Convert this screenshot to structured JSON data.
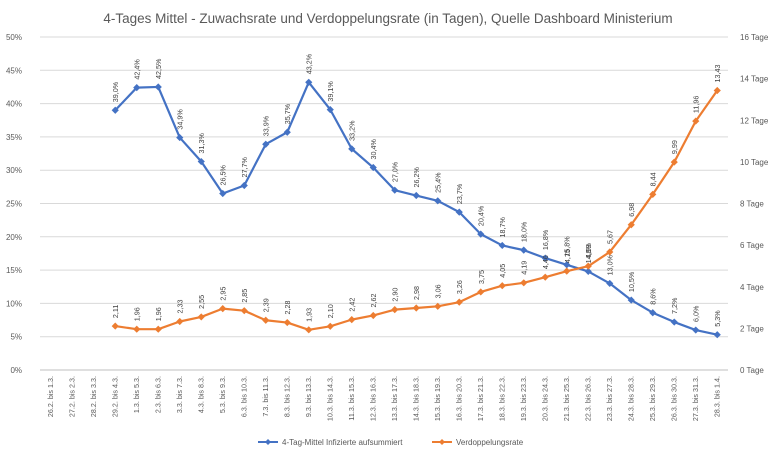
{
  "chart_data": {
    "type": "line",
    "title": "4-Tages Mittel - Zuwachsrate und Verdoppelungsrate (in Tagen), Quelle Dashboard Ministerium",
    "categories": [
      "26.2. bis 1.3.",
      "27.2. bis 2.3.",
      "28.2. bis 3.3.",
      "29.2. bis 4.3.",
      "1.3. bis 5.3.",
      "2.3. bis 6.3.",
      "3.3. bis 7.3.",
      "4.3. bis 8.3.",
      "5.3. bis 9.3.",
      "6.3. bis 10.3.",
      "7.3. bis 11.3.",
      "8.3. bis 12.3.",
      "9.3. bis 13.3.",
      "10.3. bis 14.3.",
      "11.3. bis 15.3.",
      "12.3. bis 16.3.",
      "13.3. bis 17.3.",
      "14.3. bis 18.3.",
      "15.3. bis 19.3.",
      "16.3. bis 20.3.",
      "17.3. bis 21.3.",
      "18.3. bis 22.3.",
      "19.3. bis 23.3.",
      "20.3. bis 24.3.",
      "21.3. bis 25.3.",
      "22.3. bis 26.3.",
      "23.3. bis 27.3.",
      "24.3. bis 28.3.",
      "25.3. bis 29.3.",
      "26.3. bis 30.3.",
      "27.3. bis 31.3.",
      "28.3. bis 1.4."
    ],
    "y_left": {
      "min": 0,
      "max": 50,
      "ticks": [
        "0%",
        "5%",
        "10%",
        "15%",
        "20%",
        "25%",
        "30%",
        "35%",
        "40%",
        "45%",
        "50%"
      ]
    },
    "y_right": {
      "min": 0,
      "max": 16,
      "ticks": [
        "0 Tage",
        "2 Tage",
        "4 Tage",
        "6 Tage",
        "8 Tage",
        "10 Tage",
        "12 Tage",
        "14 Tage",
        "16 Tage"
      ]
    },
    "grid": true,
    "legend_position": "bottom",
    "series": [
      {
        "name": "4-Tag-Mittel Infizierte aufsummiert",
        "axis": "left",
        "color": "#4472C4",
        "marker": "diamond",
        "values": [
          null,
          null,
          null,
          39.0,
          42.4,
          42.5,
          34.9,
          31.3,
          26.5,
          27.7,
          33.9,
          35.7,
          43.2,
          39.1,
          33.2,
          30.4,
          27.0,
          26.2,
          25.4,
          23.7,
          20.4,
          18.7,
          18.0,
          16.8,
          15.8,
          14.8,
          13.0,
          10.5,
          8.6,
          7.2,
          6.0,
          5.3
        ],
        "labels": [
          "",
          "",
          "",
          "39,0%",
          "42,4%",
          "42,5%",
          "34,9%",
          "31,3%",
          "26,5%",
          "27,7%",
          "33,9%",
          "35,7%",
          "43,2%",
          "39,1%",
          "33,2%",
          "30,4%",
          "27,0%",
          "26,2%",
          "25,4%",
          "23,7%",
          "20,4%",
          "18,7%",
          "18,0%",
          "16,8%",
          "15,8%",
          "14,8%",
          "13,0%",
          "10,5%",
          "8,6%",
          "7,2%",
          "6,0%",
          "5,3%"
        ]
      },
      {
        "name": "Verdoppelungsrate",
        "axis": "right",
        "color": "#ED7D31",
        "marker": "diamond",
        "values": [
          null,
          null,
          null,
          2.11,
          1.96,
          1.96,
          2.33,
          2.55,
          2.95,
          2.85,
          2.39,
          2.28,
          1.93,
          2.1,
          2.42,
          2.62,
          2.9,
          2.98,
          3.06,
          3.26,
          3.75,
          4.05,
          4.19,
          4.46,
          4.75,
          4.99,
          5.67,
          6.98,
          8.44,
          9.99,
          11.96,
          13.43
        ],
        "labels": [
          "",
          "",
          "",
          "2,11",
          "1,96",
          "1,96",
          "2,33",
          "2,55",
          "2,95",
          "2,85",
          "2,39",
          "2,28",
          "1,93",
          "2,10",
          "2,42",
          "2,62",
          "2,90",
          "2,98",
          "3,06",
          "3,26",
          "3,75",
          "4,05",
          "4,19",
          "4,46",
          "4,75",
          "4,99",
          "5,67",
          "6,98",
          "8,44",
          "9,99",
          "11,96",
          "13,43"
        ]
      }
    ]
  }
}
